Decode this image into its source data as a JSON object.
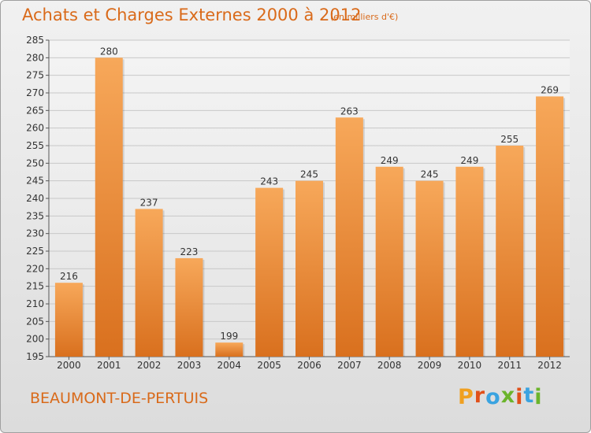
{
  "page": {
    "title": "Achats et Charges Externes 2000 à 2012",
    "unit": "(en milliers d'€)",
    "commune": "BEAUMONT-DE-PERTUIS",
    "logo": {
      "letters": [
        "P",
        "r",
        "o",
        "x",
        "i",
        "t",
        "i"
      ],
      "colors": [
        "#f0a020",
        "#e0501a",
        "#3aa3e0",
        "#6bb42b",
        "#e0501a",
        "#3aa3e0",
        "#6bb42b"
      ]
    }
  },
  "colors": {
    "title": "#d96a1a",
    "bar_top": "#f7a85a",
    "bar_bottom": "#d9701e",
    "grid": "#c8c8c8",
    "axis": "#555555"
  },
  "chart_data": {
    "type": "bar",
    "title": "Achats et Charges Externes 2000 à 2012",
    "subtitle": "(en milliers d'€)",
    "categories": [
      "2000",
      "2001",
      "2002",
      "2003",
      "2004",
      "2005",
      "2006",
      "2007",
      "2008",
      "2009",
      "2010",
      "2011",
      "2012"
    ],
    "values": [
      216,
      280,
      237,
      223,
      199,
      243,
      245,
      263,
      249,
      245,
      249,
      255,
      269
    ],
    "ylim": [
      195,
      285
    ],
    "yticks": [
      195,
      200,
      205,
      210,
      215,
      220,
      225,
      230,
      235,
      240,
      245,
      250,
      255,
      260,
      265,
      270,
      275,
      280,
      285
    ],
    "grid": true,
    "xlabel": "",
    "ylabel": ""
  }
}
